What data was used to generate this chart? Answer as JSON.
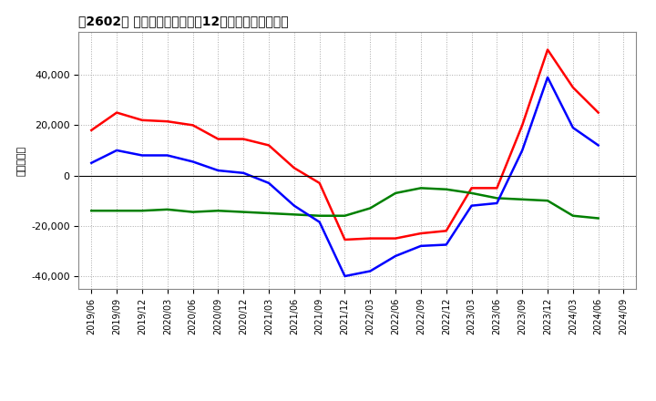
{
  "title": "　2602、 キャッシュフローの12か月移動合計の推移",
  "ylabel": "（百万円）",
  "background_color": "#ffffff",
  "plot_bg_color": "#ffffff",
  "grid_color": "#aaaaaa",
  "ylim": [
    -45000,
    57000
  ],
  "yticks": [
    -40000,
    -20000,
    0,
    20000,
    40000
  ],
  "dates": [
    "2019/06",
    "2019/09",
    "2019/12",
    "2020/03",
    "2020/06",
    "2020/09",
    "2020/12",
    "2021/03",
    "2021/06",
    "2021/09",
    "2021/12",
    "2022/03",
    "2022/06",
    "2022/09",
    "2022/12",
    "2023/03",
    "2023/06",
    "2023/09",
    "2023/12",
    "2024/03",
    "2024/06",
    "2024/09"
  ],
  "eigyo_cf": [
    18000,
    25000,
    22000,
    21500,
    20000,
    14500,
    14500,
    12000,
    3000,
    -3000,
    -25500,
    -25000,
    -25000,
    -23000,
    -22000,
    -5000,
    -5000,
    20000,
    50000,
    35000,
    25000,
    null
  ],
  "toshi_cf": [
    -14000,
    -14000,
    -14000,
    -13500,
    -14500,
    -14000,
    -14500,
    -15000,
    -15500,
    -16000,
    -16000,
    -13000,
    -7000,
    -5000,
    -5500,
    -7000,
    -9000,
    -9500,
    -10000,
    -16000,
    -17000,
    null
  ],
  "free_cf": [
    5000,
    10000,
    8000,
    8000,
    5500,
    2000,
    1000,
    -3000,
    -12000,
    -18500,
    -40000,
    -38000,
    -32000,
    -28000,
    -27500,
    -12000,
    -11000,
    10000,
    39000,
    19000,
    12000,
    null
  ],
  "eigyo_color": "#ff0000",
  "toshi_color": "#008000",
  "free_color": "#0000ff",
  "line_width": 1.8
}
